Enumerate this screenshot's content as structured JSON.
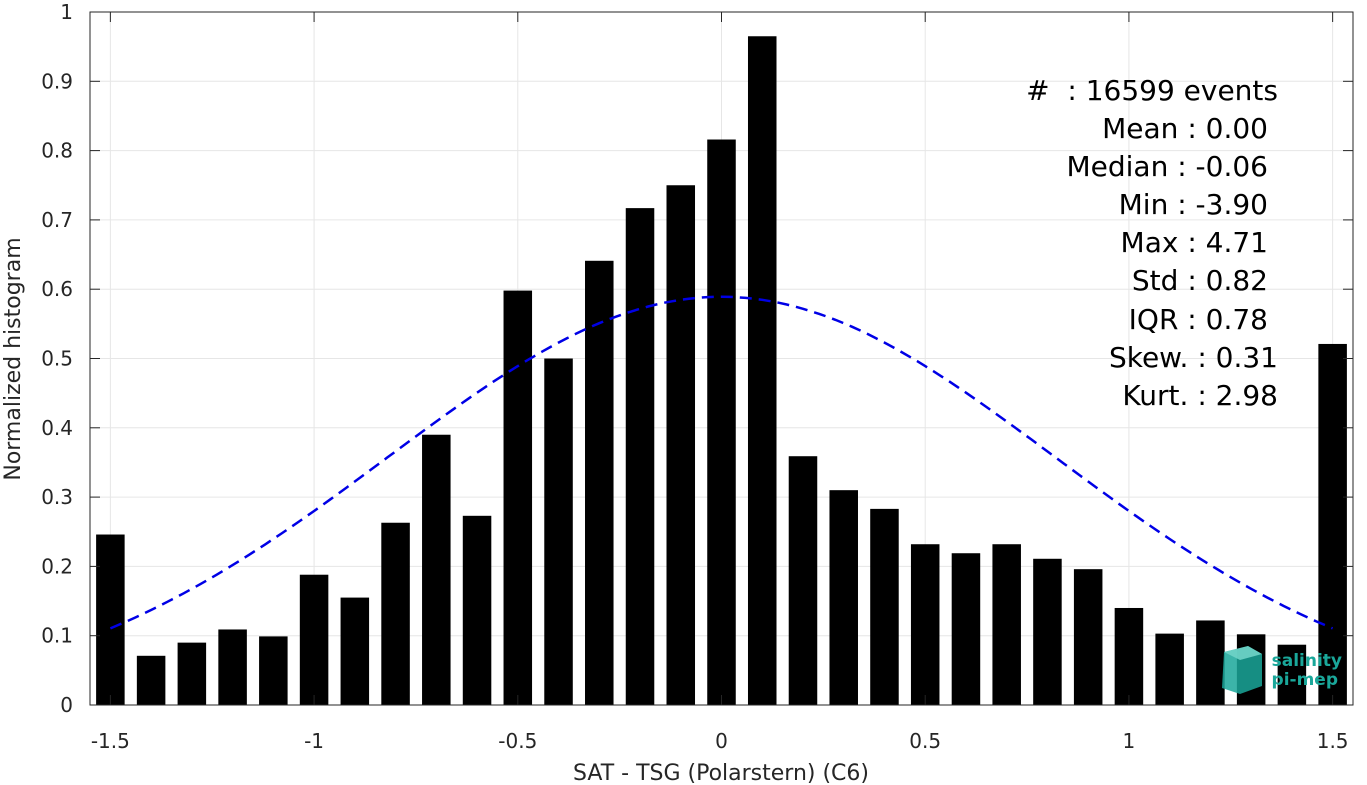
{
  "chart_data": {
    "type": "bar",
    "xlabel": "SAT - TSG (Polarstern) (C6)",
    "ylabel": "Normalized histogram",
    "xlim": [
      -1.55,
      1.55
    ],
    "ylim": [
      0,
      1
    ],
    "grid": true,
    "x_ticks": [
      -1.5,
      -1,
      -0.5,
      0,
      0.5,
      1,
      1.5
    ],
    "x_tick_labels": [
      "-1.5",
      "-1",
      "-0.5",
      "0",
      "0.5",
      "1",
      "1.5"
    ],
    "y_ticks": [
      0,
      0.1,
      0.2,
      0.3,
      0.4,
      0.5,
      0.6,
      0.7,
      0.8,
      0.9,
      1
    ],
    "y_tick_labels": [
      "0",
      "0.1",
      "0.2",
      "0.3",
      "0.4",
      "0.5",
      "0.6",
      "0.7",
      "0.8",
      "0.9",
      "1"
    ],
    "bar_color": "#000000",
    "bar_width": 0.07,
    "bars": {
      "x": [
        -1.5,
        -1.4,
        -1.3,
        -1.2,
        -1.1,
        -1.0,
        -0.9,
        -0.8,
        -0.7,
        -0.6,
        -0.5,
        -0.4,
        -0.3,
        -0.2,
        -0.1,
        0.0,
        0.1,
        0.2,
        0.3,
        0.4,
        0.5,
        0.6,
        0.7,
        0.8,
        0.9,
        1.0,
        1.1,
        1.2,
        1.3,
        1.4,
        1.5
      ],
      "values": [
        0.246,
        0.071,
        0.09,
        0.109,
        0.099,
        0.188,
        0.155,
        0.263,
        0.39,
        0.273,
        0.598,
        0.5,
        0.641,
        0.717,
        0.75,
        0.816,
        0.965,
        0.359,
        0.31,
        0.283,
        0.232,
        0.219,
        0.232,
        0.211,
        0.196,
        0.14,
        0.103,
        0.122,
        0.102,
        0.087,
        0.521
      ]
    },
    "fit_curve": {
      "style": "dashed",
      "color": "#0000e6",
      "x_range": [
        -1.5,
        1.5
      ],
      "mean": 0.0,
      "std": 0.82,
      "peak": 0.589
    },
    "stats": [
      {
        "label": "#  : 16599 events"
      },
      {
        "label": "Mean : 0.00"
      },
      {
        "label": "Median : -0.06"
      },
      {
        "label": "Min : -3.90"
      },
      {
        "label": "Max : 4.71"
      },
      {
        "label": "Std : 0.82"
      },
      {
        "label": "IQR : 0.78"
      },
      {
        "label": "Skew. : 0.31"
      },
      {
        "label": "Kurt. : 2.98"
      }
    ]
  },
  "logo": {
    "line1": "salinity",
    "line2": "pi-mep",
    "color": "#1aa79a"
  }
}
